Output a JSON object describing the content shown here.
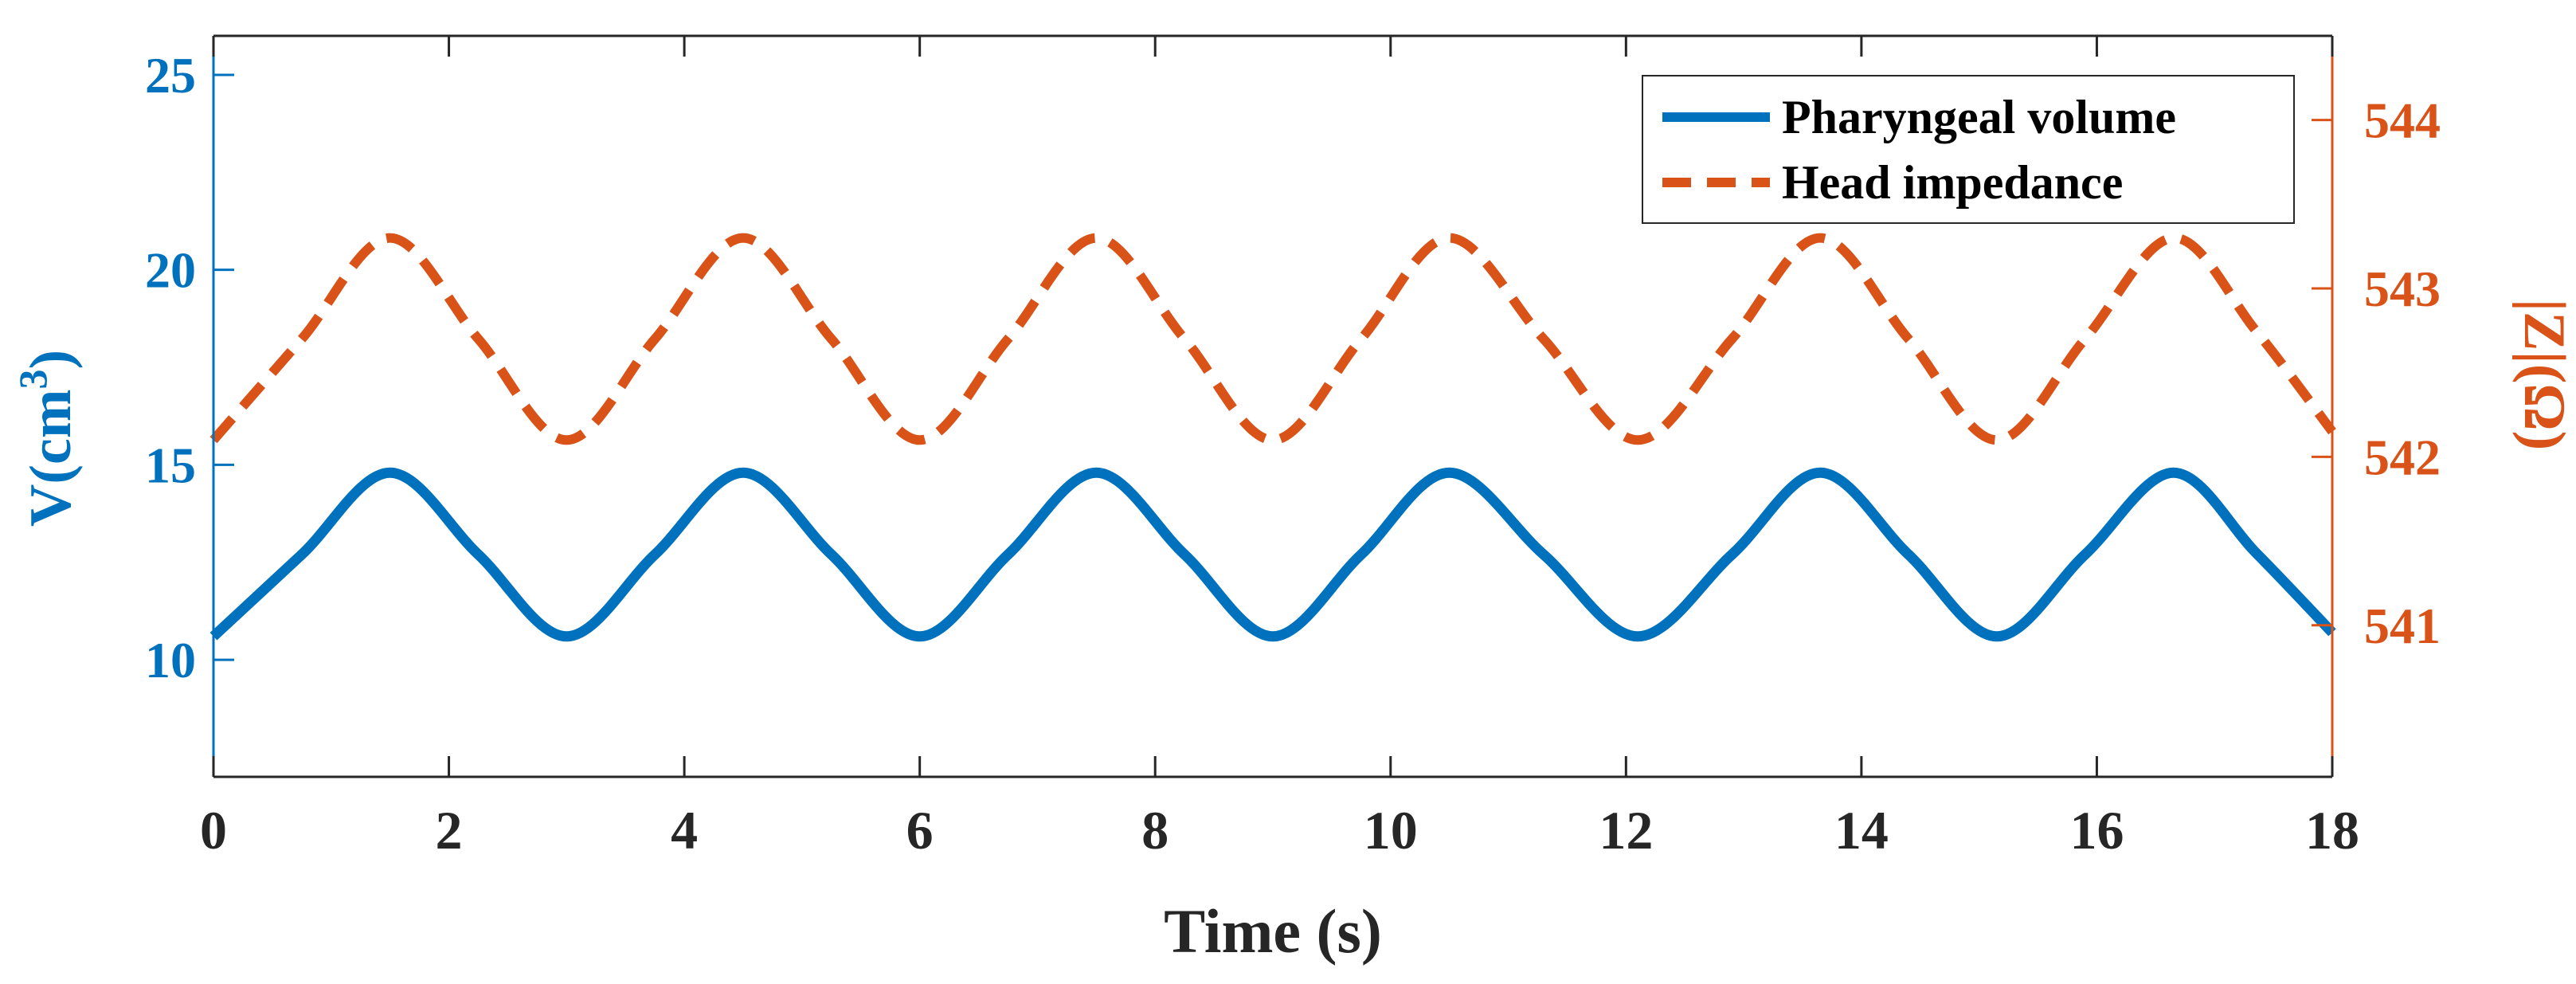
{
  "chart_data": {
    "type": "line",
    "title": "",
    "xlabel": "Time (s)",
    "xlim": [
      0,
      18
    ],
    "xticks": [
      0,
      2,
      4,
      6,
      8,
      10,
      12,
      14,
      16,
      18
    ],
    "left_axis": {
      "label_prefix": "V(cm",
      "label_sup": "3",
      "label_suffix": ")",
      "ylim": [
        7,
        26
      ],
      "yticks": [
        10,
        15,
        20,
        25
      ],
      "color": "#0072BD"
    },
    "right_axis": {
      "label": "|Z|(Ω)",
      "ylim": [
        540.1,
        544.5
      ],
      "yticks": [
        541,
        542,
        543,
        544
      ],
      "color": "#D95319"
    },
    "legend_placement": "top-right",
    "grid": false,
    "series": [
      {
        "name": "Pharyngeal volume",
        "axis": "left",
        "style": "solid",
        "color": "#0072BD",
        "x": [
          0,
          0.75,
          1.5,
          2.25,
          3.0,
          3.75,
          4.5,
          5.25,
          6.0,
          6.75,
          7.5,
          8.25,
          9.0,
          9.75,
          10.5,
          11.3,
          12.1,
          12.9,
          13.65,
          14.4,
          15.15,
          15.9,
          16.65,
          17.35,
          18.0
        ],
        "y": [
          10.6,
          12.7,
          14.8,
          12.7,
          10.6,
          12.7,
          14.8,
          12.7,
          10.6,
          12.7,
          14.8,
          12.7,
          10.6,
          12.7,
          14.8,
          12.7,
          10.6,
          12.7,
          14.8,
          12.7,
          10.6,
          12.7,
          14.8,
          12.75,
          10.7
        ]
      },
      {
        "name": "Head impedance",
        "axis": "right",
        "style": "dashed",
        "color": "#D95319",
        "x": [
          0,
          0.75,
          1.5,
          2.25,
          3.0,
          3.75,
          4.5,
          5.25,
          6.0,
          6.75,
          7.5,
          8.25,
          9.0,
          9.75,
          10.5,
          11.3,
          12.1,
          12.9,
          13.65,
          14.4,
          15.15,
          15.9,
          16.65,
          17.35,
          18.0
        ],
        "y": [
          542.1,
          542.7,
          543.3,
          542.7,
          542.1,
          542.7,
          543.3,
          542.7,
          542.1,
          542.7,
          543.3,
          542.7,
          542.1,
          542.7,
          543.3,
          542.7,
          542.1,
          542.7,
          543.3,
          542.7,
          542.1,
          542.7,
          543.3,
          542.75,
          542.15
        ]
      }
    ]
  }
}
